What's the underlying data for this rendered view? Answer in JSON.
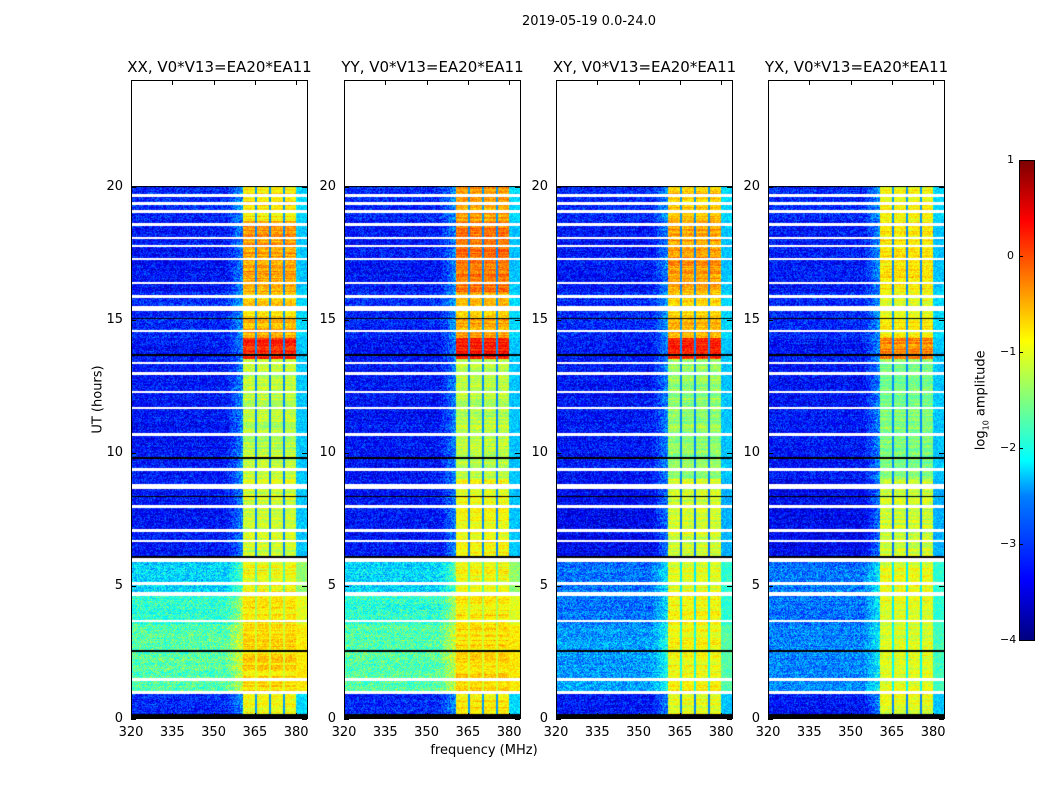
{
  "figure_title": "2019-05-19 0.0-24.0",
  "chart_data": {
    "type": "heatmap",
    "title": "2019-05-19 0.0-24.0",
    "xlabel": "frequency (MHz)",
    "ylabel": "UT (hours)",
    "xlim": [
      320,
      384.3
    ],
    "ylim": [
      0,
      24
    ],
    "xticks": [
      "320",
      "335",
      "350",
      "365",
      "380"
    ],
    "yticks": [
      "0",
      "5",
      "10",
      "15",
      "20"
    ],
    "colorbar": {
      "label_main": "log",
      "label_sub": "10",
      "label_tail": " amplitude",
      "range": [
        -4,
        1
      ],
      "ticks": [
        "1",
        "0",
        "−1",
        "−2",
        "−3",
        "−4"
      ],
      "colormap": "jet"
    },
    "band_mhz": [
      360.6,
      380.0
    ],
    "channel_edges_mhz": [
      365.4,
      370.4,
      375.5
    ],
    "data_end_hour": 20.0,
    "flagged_gaps_hours": [
      [
        0.9,
        1.0
      ],
      [
        1.4,
        1.5
      ],
      [
        3.6,
        3.7
      ],
      [
        4.6,
        4.75
      ],
      [
        5.0,
        5.1
      ],
      [
        5.85,
        6.0
      ],
      [
        6.6,
        6.7
      ],
      [
        7.0,
        7.1
      ],
      [
        7.9,
        8.0
      ],
      [
        8.6,
        8.8
      ],
      [
        9.3,
        9.4
      ],
      [
        10.6,
        10.7
      ],
      [
        11.6,
        11.7
      ],
      [
        12.2,
        12.3
      ],
      [
        12.9,
        13.0
      ],
      [
        13.3,
        13.4
      ],
      [
        14.5,
        14.6
      ],
      [
        15.3,
        15.5
      ],
      [
        15.8,
        15.9
      ],
      [
        16.3,
        16.4
      ],
      [
        17.2,
        17.3
      ],
      [
        17.7,
        17.8
      ],
      [
        18.0,
        18.1
      ],
      [
        18.5,
        18.6
      ],
      [
        19.0,
        19.1
      ],
      [
        19.3,
        19.4
      ],
      [
        19.6,
        19.7
      ]
    ],
    "dark_rows_hours": [
      [
        0.0,
        0.15
      ],
      [
        2.5,
        2.55
      ],
      [
        6.0,
        6.1
      ],
      [
        8.3,
        8.35
      ],
      [
        9.75,
        9.82
      ],
      [
        13.6,
        13.7
      ],
      [
        15.0,
        15.05
      ],
      [
        19.95,
        20.0
      ]
    ],
    "panels": [
      {
        "title": "XX, V0*V13=EA20*EA11",
        "segments": [
          [
            0,
            0.9,
            -3.2,
            -0.9
          ],
          [
            1.0,
            3.5,
            -1.7,
            -0.7
          ],
          [
            3.5,
            4.6,
            -1.9,
            -0.8
          ],
          [
            4.6,
            6.0,
            -2.3,
            -0.9
          ],
          [
            6.0,
            9.0,
            -3.3,
            -1.1
          ],
          [
            9.0,
            13.5,
            -3.3,
            -1.2
          ],
          [
            13.5,
            14.3,
            -3.3,
            0.2
          ],
          [
            14.3,
            15.0,
            -3.2,
            -0.5
          ],
          [
            15.0,
            16.0,
            -3.2,
            -0.7
          ],
          [
            16.0,
            18.7,
            -3.3,
            -0.4
          ],
          [
            18.7,
            20.0,
            -3.2,
            -0.8
          ]
        ]
      },
      {
        "title": "YY, V0*V13=EA20*EA11",
        "segments": [
          [
            0,
            0.9,
            -3.2,
            -0.8
          ],
          [
            1.0,
            3.5,
            -1.7,
            -0.7
          ],
          [
            3.5,
            4.6,
            -1.9,
            -0.8
          ],
          [
            4.6,
            6.0,
            -2.3,
            -0.9
          ],
          [
            6.0,
            9.0,
            -3.3,
            -0.9
          ],
          [
            9.0,
            13.5,
            -3.3,
            -1.2
          ],
          [
            13.5,
            14.3,
            -3.3,
            0.3
          ],
          [
            14.3,
            15.0,
            -3.2,
            -0.4
          ],
          [
            15.0,
            16.0,
            -3.2,
            -0.6
          ],
          [
            16.0,
            18.7,
            -3.3,
            -0.2
          ],
          [
            18.7,
            20.0,
            -3.2,
            -0.4
          ]
        ]
      },
      {
        "title": "XY, V0*V13=EA20*EA11",
        "segments": [
          [
            0,
            0.9,
            -3.3,
            -1.0
          ],
          [
            1.0,
            3.5,
            -2.6,
            -0.9
          ],
          [
            3.5,
            4.6,
            -2.8,
            -0.9
          ],
          [
            4.6,
            6.0,
            -2.8,
            -1.0
          ],
          [
            6.0,
            9.0,
            -3.4,
            -1.1
          ],
          [
            9.0,
            13.5,
            -3.3,
            -1.4
          ],
          [
            13.5,
            14.3,
            -3.3,
            0.2
          ],
          [
            14.3,
            15.0,
            -3.2,
            -0.5
          ],
          [
            15.0,
            16.0,
            -3.2,
            -0.7
          ],
          [
            16.0,
            18.7,
            -3.3,
            -0.4
          ],
          [
            18.7,
            20.0,
            -3.2,
            -0.6
          ]
        ]
      },
      {
        "title": "YX, V0*V13=EA20*EA11",
        "segments": [
          [
            0,
            0.9,
            -3.3,
            -1.0
          ],
          [
            1.0,
            3.5,
            -2.7,
            -1.0
          ],
          [
            3.5,
            4.6,
            -2.8,
            -1.0
          ],
          [
            4.6,
            6.0,
            -2.8,
            -1.0
          ],
          [
            6.0,
            9.0,
            -3.4,
            -1.1
          ],
          [
            9.0,
            13.5,
            -3.3,
            -1.5
          ],
          [
            13.5,
            14.3,
            -3.3,
            -0.3
          ],
          [
            14.3,
            15.0,
            -3.2,
            -0.8
          ],
          [
            15.0,
            16.0,
            -3.2,
            -1.0
          ],
          [
            16.0,
            18.7,
            -3.3,
            -0.8
          ],
          [
            18.7,
            20.0,
            -3.2,
            -0.9
          ]
        ]
      }
    ]
  }
}
